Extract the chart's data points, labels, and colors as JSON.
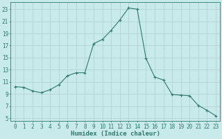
{
  "x": [
    0,
    1,
    2,
    3,
    4,
    5,
    6,
    7,
    8,
    9,
    10,
    11,
    12,
    13,
    14,
    15,
    16,
    17,
    18,
    19,
    20,
    21,
    22,
    23
  ],
  "y": [
    10.2,
    10.1,
    9.5,
    9.2,
    9.7,
    10.5,
    12.0,
    12.5,
    12.5,
    17.3,
    18.0,
    19.5,
    21.2,
    23.2,
    23.0,
    14.9,
    11.8,
    11.3,
    8.9,
    8.8,
    8.7,
    7.1,
    6.3,
    5.4
  ],
  "line_color": "#2d7a6a",
  "bg_color": "#c8eaea",
  "grid_color": "#b0d0d0",
  "xlabel": "Humidex (Indice chaleur)",
  "yticks": [
    5,
    7,
    9,
    11,
    13,
    15,
    17,
    19,
    21,
    23
  ],
  "xlim": [
    -0.5,
    23.5
  ],
  "ylim": [
    4.5,
    24.2
  ],
  "tick_fontsize": 5.5,
  "xlabel_fontsize": 6.5,
  "tick_color": "#2d7a6a",
  "label_color": "#2d7a6a",
  "marker": "+"
}
